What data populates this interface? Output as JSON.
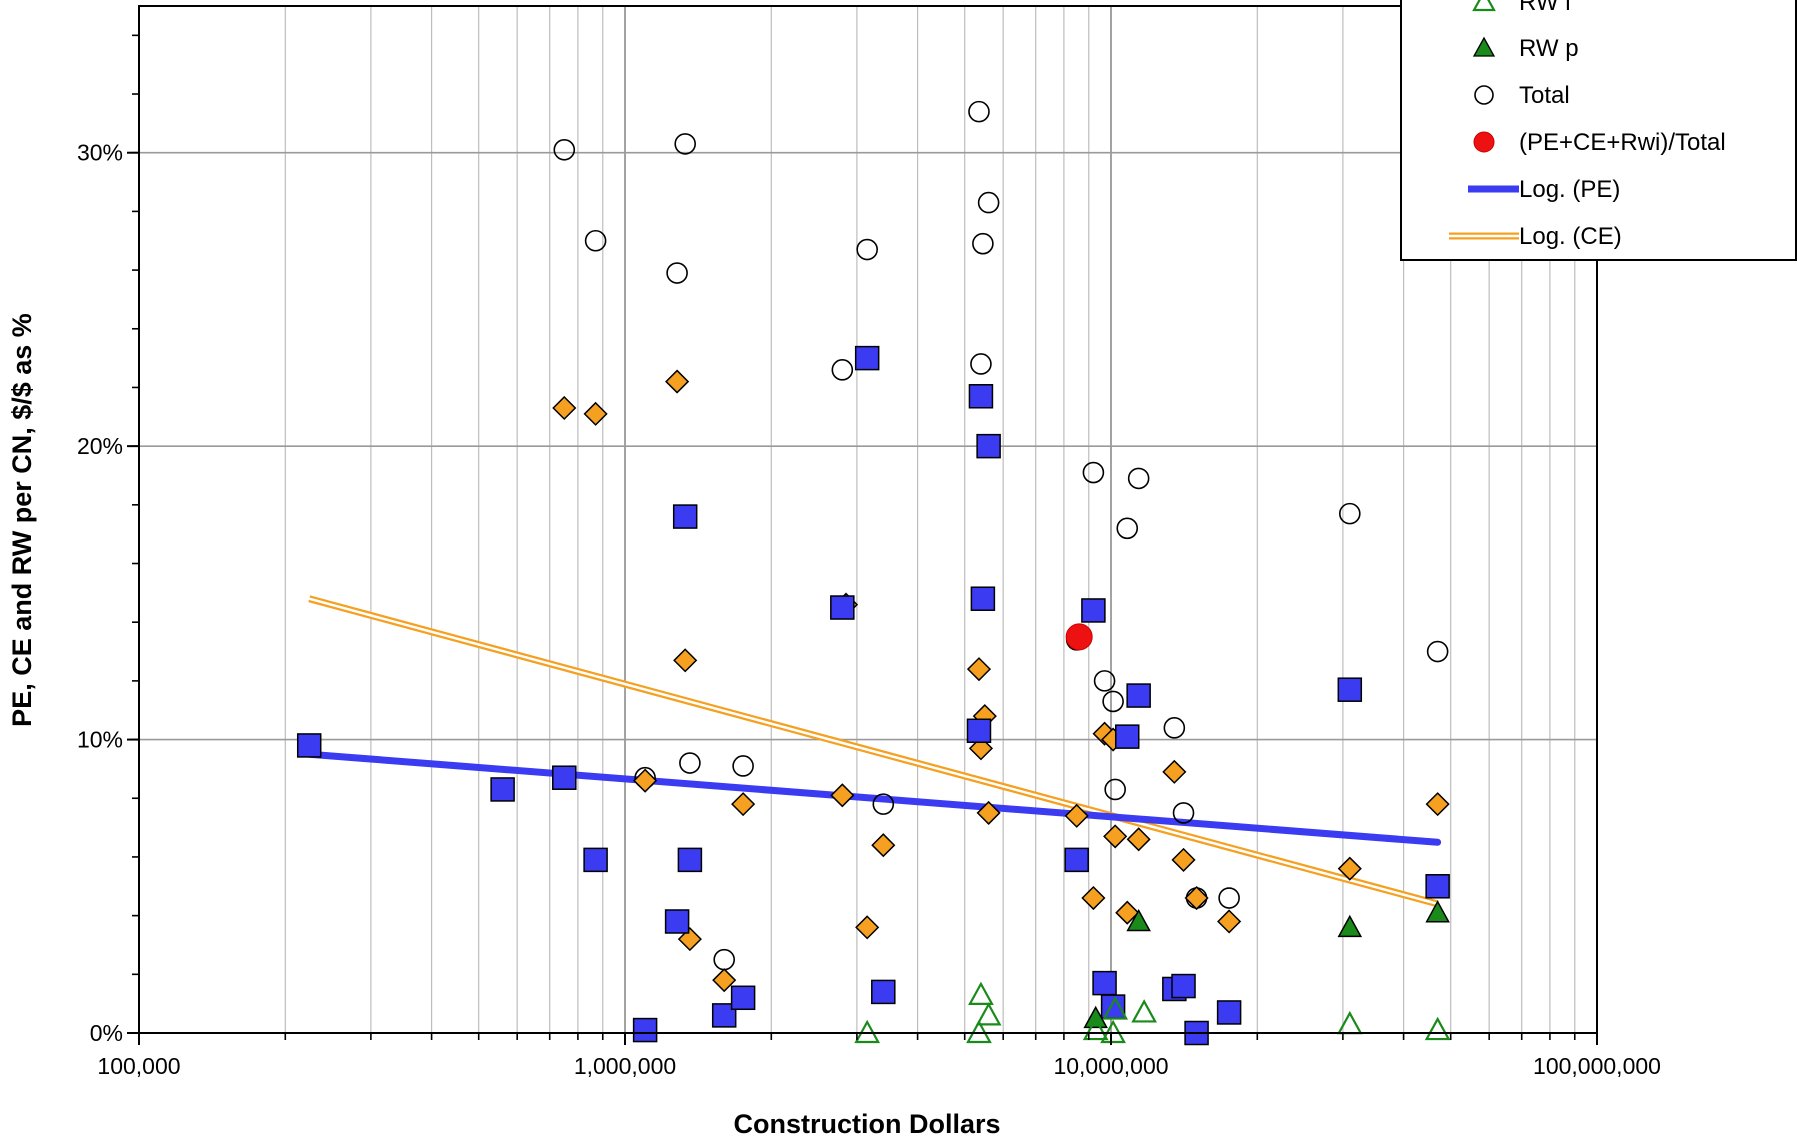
{
  "chart_data": {
    "type": "scatter",
    "title": "",
    "xlabel": "Construction Dollars",
    "ylabel": "PE, CE and RW per CN, $/$ as %",
    "x_scale": "log",
    "xlim": [
      100000,
      100000000
    ],
    "ylim": [
      0,
      35
    ],
    "x_ticks": [
      {
        "value": 100000,
        "label": "100,000"
      },
      {
        "value": 1000000,
        "label": "1,000,000"
      },
      {
        "value": 10000000,
        "label": "10,000,000"
      },
      {
        "value": 100000000,
        "label": "100,000,000"
      }
    ],
    "y_ticks": [
      {
        "value": 0,
        "label": "0%"
      },
      {
        "value": 10,
        "label": "10%"
      },
      {
        "value": 20,
        "label": "20%"
      },
      {
        "value": 30,
        "label": "30%"
      }
    ],
    "grid": true,
    "legend_position": "top-right",
    "colors": {
      "pe": "#3b3bf2",
      "ce": "#f5a020",
      "rw_green": "#1a8a1a",
      "total": "#ffffff",
      "ratio": "#ee1111",
      "log_pe": "#3b3bf2",
      "log_ce": "#f5a020"
    },
    "legend": [
      {
        "name": "RW i",
        "marker": "triangle-open"
      },
      {
        "name": "RW p",
        "marker": "triangle-filled"
      },
      {
        "name": "Total",
        "marker": "circle-open"
      },
      {
        "name": "(PE+CE+Rwi)/Total",
        "marker": "circle-red"
      },
      {
        "name": "Log. (PE)",
        "marker": "line-pe"
      },
      {
        "name": "Log. (CE)",
        "marker": "line-ce"
      }
    ],
    "series": [
      {
        "key": "pe",
        "marker": "square",
        "points": [
          [
            224000,
            9.8
          ],
          [
            560000,
            8.3
          ],
          [
            750000,
            8.7
          ],
          [
            870000,
            5.9
          ],
          [
            1100000,
            0.1
          ],
          [
            1280000,
            3.8
          ],
          [
            1330000,
            17.6
          ],
          [
            1360000,
            5.9
          ],
          [
            1600000,
            0.6
          ],
          [
            1750000,
            1.2
          ],
          [
            2800000,
            14.5
          ],
          [
            3150000,
            23.0
          ],
          [
            3400000,
            1.4
          ],
          [
            5350000,
            10.3
          ],
          [
            5400000,
            21.7
          ],
          [
            5450000,
            14.8
          ],
          [
            5600000,
            20.0
          ],
          [
            8500000,
            5.9
          ],
          [
            9200000,
            14.4
          ],
          [
            9700000,
            1.7
          ],
          [
            10100000,
            0.9
          ],
          [
            10800000,
            10.1
          ],
          [
            11400000,
            11.5
          ],
          [
            13500000,
            1.5
          ],
          [
            14100000,
            1.6
          ],
          [
            15000000,
            0.0
          ],
          [
            17500000,
            0.7
          ],
          [
            31000000,
            11.7
          ],
          [
            47000000,
            5.0
          ]
        ]
      },
      {
        "key": "ce",
        "marker": "diamond",
        "points": [
          [
            224000,
            9.8
          ],
          [
            750000,
            21.3
          ],
          [
            870000,
            21.1
          ],
          [
            1100000,
            8.6
          ],
          [
            1280000,
            22.2
          ],
          [
            1330000,
            12.7
          ],
          [
            1360000,
            3.2
          ],
          [
            1600000,
            1.8
          ],
          [
            1750000,
            7.8
          ],
          [
            2800000,
            8.1
          ],
          [
            2850000,
            14.6
          ],
          [
            3150000,
            3.6
          ],
          [
            3400000,
            6.4
          ],
          [
            5350000,
            12.4
          ],
          [
            5400000,
            9.7
          ],
          [
            5500000,
            10.8
          ],
          [
            5600000,
            7.5
          ],
          [
            8500000,
            7.4
          ],
          [
            9200000,
            4.6
          ],
          [
            9700000,
            10.2
          ],
          [
            10100000,
            10.0
          ],
          [
            10200000,
            6.7
          ],
          [
            10800000,
            4.1
          ],
          [
            11400000,
            6.6
          ],
          [
            13500000,
            8.9
          ],
          [
            14100000,
            5.9
          ],
          [
            15000000,
            4.6
          ],
          [
            17500000,
            3.8
          ],
          [
            31000000,
            5.6
          ],
          [
            47000000,
            7.8
          ]
        ]
      },
      {
        "key": "total",
        "marker": "circle",
        "points": [
          [
            224000,
            9.8
          ],
          [
            560000,
            8.3
          ],
          [
            750000,
            30.1
          ],
          [
            870000,
            27.0
          ],
          [
            1100000,
            8.7
          ],
          [
            1280000,
            25.9
          ],
          [
            1330000,
            30.3
          ],
          [
            1360000,
            9.2
          ],
          [
            1600000,
            2.5
          ],
          [
            1750000,
            9.1
          ],
          [
            2800000,
            22.6
          ],
          [
            3150000,
            26.7
          ],
          [
            3400000,
            7.8
          ],
          [
            5350000,
            31.4
          ],
          [
            5400000,
            22.8
          ],
          [
            5450000,
            26.9
          ],
          [
            5600000,
            28.3
          ],
          [
            8500000,
            13.4
          ],
          [
            9200000,
            19.1
          ],
          [
            9700000,
            12.0
          ],
          [
            10100000,
            11.3
          ],
          [
            10200000,
            8.3
          ],
          [
            10800000,
            17.2
          ],
          [
            11400000,
            18.9
          ],
          [
            13500000,
            10.4
          ],
          [
            14100000,
            7.5
          ],
          [
            15000000,
            4.6
          ],
          [
            17500000,
            4.6
          ],
          [
            31000000,
            17.7
          ],
          [
            47000000,
            13.0
          ]
        ]
      },
      {
        "key": "rw_p",
        "marker": "triangle-filled",
        "points": [
          [
            9300000,
            0.5
          ],
          [
            11400000,
            3.8
          ],
          [
            31000000,
            3.6
          ],
          [
            47000000,
            4.1
          ]
        ]
      },
      {
        "key": "rw_i",
        "marker": "triangle-open",
        "points": [
          [
            3150000,
            0.0
          ],
          [
            5350000,
            0.0
          ],
          [
            5400000,
            1.3
          ],
          [
            5600000,
            0.6
          ],
          [
            9300000,
            0.1
          ],
          [
            10100000,
            0.0
          ],
          [
            10200000,
            0.8
          ],
          [
            11700000,
            0.7
          ],
          [
            31000000,
            0.3
          ],
          [
            47000000,
            0.1
          ]
        ]
      },
      {
        "key": "ratio",
        "marker": "circle-red",
        "points": [
          [
            8600000,
            13.5
          ]
        ]
      }
    ],
    "trendlines": [
      {
        "name": "Log. (PE)",
        "x": [
          224000,
          47000000
        ],
        "y": [
          9.5,
          6.5
        ]
      },
      {
        "name": "Log. (CE)",
        "x": [
          224000,
          47000000
        ],
        "y": [
          14.8,
          4.4
        ]
      }
    ]
  }
}
